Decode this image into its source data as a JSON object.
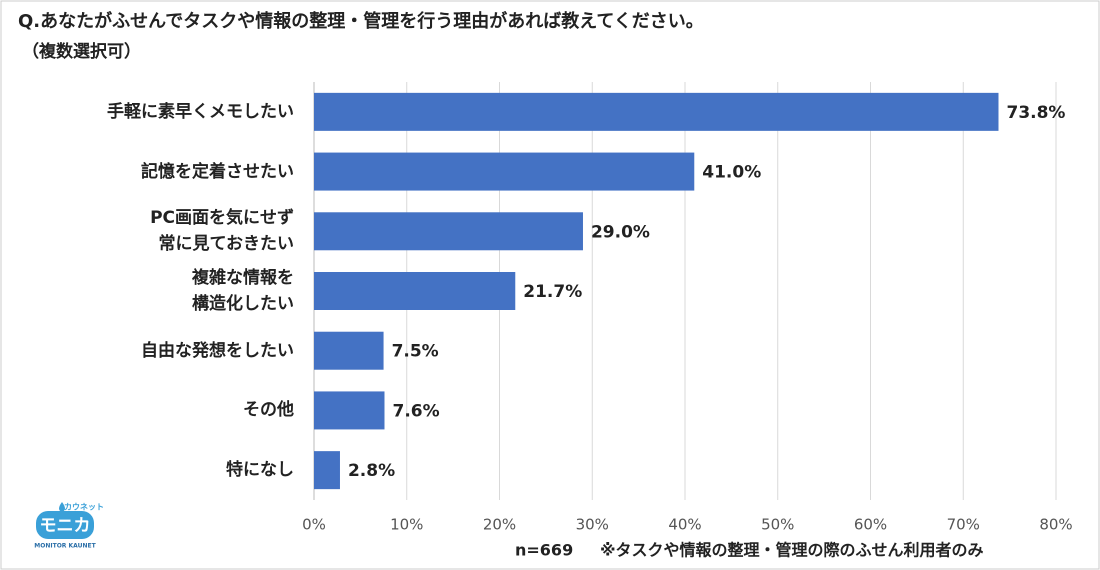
{
  "chart_data": {
    "type": "bar",
    "orientation": "horizontal",
    "title": "Q.あなたがふせんでタスクや情報の整理・管理を行う理由があれば教えてください。",
    "subtitle": "（複数選択可）",
    "categories": [
      "手軽に素早くメモしたい",
      "記憶を定着させたい",
      "PC画面を気にせず\n常に見ておきたい",
      "複雑な情報を\n構造化したい",
      "自由な発想をしたい",
      "その他",
      "特になし"
    ],
    "values": [
      73.8,
      41.0,
      29.0,
      21.7,
      7.5,
      7.6,
      2.8
    ],
    "value_labels": [
      "73.8%",
      "41.0%",
      "29.0%",
      "21.7%",
      "7.5%",
      "7.6%",
      "2.8%"
    ],
    "color": "#4472c4",
    "xlim": [
      0,
      80
    ],
    "xticks": [
      {
        "value": 0,
        "label": "0%"
      },
      {
        "value": 10,
        "label": "10%"
      },
      {
        "value": 20,
        "label": "20%"
      },
      {
        "value": 30,
        "label": "30%"
      },
      {
        "value": 40,
        "label": "40%"
      },
      {
        "value": 50,
        "label": "50%"
      },
      {
        "value": 60,
        "label": "60%"
      },
      {
        "value": 70,
        "label": "70%"
      },
      {
        "value": 80,
        "label": "80%"
      }
    ],
    "grid": true,
    "sample_size": "n=669",
    "note": "※タスクや情報の整理・管理の際のふせん利用者のみ",
    "logo": {
      "top": "カウネット",
      "main": "モニカ",
      "bottom": "MONITOR KAUNET"
    }
  }
}
